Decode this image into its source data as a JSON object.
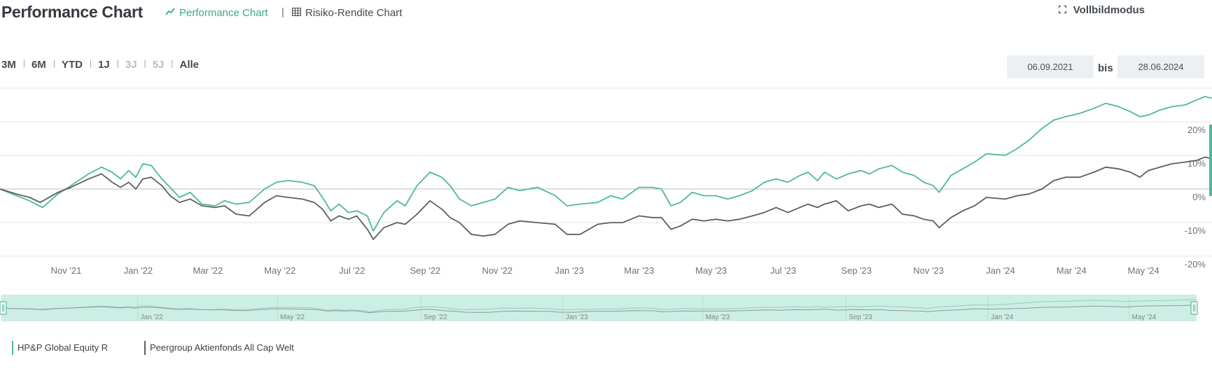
{
  "header": {
    "title": "Performance Chart",
    "tabs": [
      {
        "label": "Performance Chart",
        "icon": "line-chart-icon",
        "active": true
      },
      {
        "label": "Risiko-Rendite Chart",
        "icon": "table-grid-icon",
        "active": false
      }
    ],
    "separator": "|",
    "fullscreen_label": "Vollbildmodus",
    "fullscreen_icon": "expand-icon"
  },
  "range": {
    "buttons": [
      {
        "label": "3M",
        "enabled": true
      },
      {
        "label": "6M",
        "enabled": true
      },
      {
        "label": "YTD",
        "enabled": true
      },
      {
        "label": "1J",
        "enabled": true
      },
      {
        "label": "3J",
        "enabled": false
      },
      {
        "label": "5J",
        "enabled": false
      },
      {
        "label": "Alle",
        "enabled": true
      }
    ],
    "separator": "|",
    "from": "06.09.2021",
    "bis_label": "bis",
    "to": "28.06.2024"
  },
  "colors": {
    "fund": "#4cb99b",
    "peer": "#5a5f66",
    "navigator": "#cdeee4",
    "accent": "#3aa98c"
  },
  "chart_data": {
    "type": "line",
    "x_start": "2021-09-06",
    "x_end": "2024-06-28",
    "xticks": [
      {
        "date": "2021-11-01",
        "label": "Nov '21"
      },
      {
        "date": "2022-01-01",
        "label": "Jan '22"
      },
      {
        "date": "2022-03-01",
        "label": "Mar '22"
      },
      {
        "date": "2022-05-01",
        "label": "May '22"
      },
      {
        "date": "2022-07-01",
        "label": "Jul '22"
      },
      {
        "date": "2022-09-01",
        "label": "Sep '22"
      },
      {
        "date": "2022-11-01",
        "label": "Nov '22"
      },
      {
        "date": "2023-01-01",
        "label": "Jan '23"
      },
      {
        "date": "2023-03-01",
        "label": "Mar '23"
      },
      {
        "date": "2023-05-01",
        "label": "May '23"
      },
      {
        "date": "2023-07-01",
        "label": "Jul '23"
      },
      {
        "date": "2023-09-01",
        "label": "Sep '23"
      },
      {
        "date": "2023-11-01",
        "label": "Nov '23"
      },
      {
        "date": "2024-01-01",
        "label": "Jan '24"
      },
      {
        "date": "2024-03-01",
        "label": "Mar '24"
      },
      {
        "date": "2024-05-01",
        "label": "May '24"
      }
    ],
    "yticks": [
      {
        "value": 20,
        "label": "20%"
      },
      {
        "value": 10,
        "label": "10%"
      },
      {
        "value": 0,
        "label": "0%"
      },
      {
        "value": -10,
        "label": "-10%"
      },
      {
        "value": -20,
        "label": "-20%"
      }
    ],
    "ylim": [
      -20,
      30
    ],
    "navigator_ticks": [
      "Jan '22",
      "May '22",
      "Sep '22",
      "Jan '23",
      "May '23",
      "Sep '23",
      "Jan '24",
      "May '24"
    ],
    "series": [
      {
        "name": "HP&P Global Equity R",
        "color": "#4cb99b",
        "points": [
          [
            "2021-09-06",
            0
          ],
          [
            "2021-09-20",
            -2
          ],
          [
            "2021-10-01",
            -3.5
          ],
          [
            "2021-10-12",
            -5.5
          ],
          [
            "2021-10-25",
            -1.5
          ],
          [
            "2021-11-05",
            1
          ],
          [
            "2021-11-20",
            4.5
          ],
          [
            "2021-12-01",
            6.5
          ],
          [
            "2021-12-10",
            5
          ],
          [
            "2021-12-17",
            3
          ],
          [
            "2021-12-24",
            5.5
          ],
          [
            "2021-12-30",
            3.5
          ],
          [
            "2022-01-05",
            7.5
          ],
          [
            "2022-01-12",
            7
          ],
          [
            "2022-01-21",
            3
          ],
          [
            "2022-01-28",
            0.5
          ],
          [
            "2022-02-05",
            -2.5
          ],
          [
            "2022-02-14",
            -1
          ],
          [
            "2022-02-24",
            -4.5
          ],
          [
            "2022-03-07",
            -5
          ],
          [
            "2022-03-15",
            -3.5
          ],
          [
            "2022-03-25",
            -4.5
          ],
          [
            "2022-04-05",
            -4
          ],
          [
            "2022-04-18",
            0
          ],
          [
            "2022-04-28",
            2
          ],
          [
            "2022-05-08",
            2.5
          ],
          [
            "2022-05-20",
            2
          ],
          [
            "2022-05-30",
            1
          ],
          [
            "2022-06-06",
            -2.5
          ],
          [
            "2022-06-13",
            -6.5
          ],
          [
            "2022-06-20",
            -4.5
          ],
          [
            "2022-06-28",
            -7
          ],
          [
            "2022-07-05",
            -6.5
          ],
          [
            "2022-07-14",
            -8
          ],
          [
            "2022-07-19",
            -12.5
          ],
          [
            "2022-07-28",
            -7
          ],
          [
            "2022-08-08",
            -3.5
          ],
          [
            "2022-08-15",
            -5
          ],
          [
            "2022-08-25",
            1
          ],
          [
            "2022-09-05",
            5
          ],
          [
            "2022-09-15",
            3.5
          ],
          [
            "2022-09-22",
            1
          ],
          [
            "2022-09-30",
            -3
          ],
          [
            "2022-10-10",
            -5
          ],
          [
            "2022-10-20",
            -4
          ],
          [
            "2022-10-30",
            -3
          ],
          [
            "2022-11-10",
            0.5
          ],
          [
            "2022-11-20",
            -0.5
          ],
          [
            "2022-12-05",
            0.5
          ],
          [
            "2022-12-20",
            -2
          ],
          [
            "2022-12-30",
            -5
          ],
          [
            "2023-01-10",
            -4.5
          ],
          [
            "2023-01-25",
            -4
          ],
          [
            "2023-02-05",
            -2
          ],
          [
            "2023-02-15",
            -3
          ],
          [
            "2023-03-01",
            0.5
          ],
          [
            "2023-03-12",
            0.5
          ],
          [
            "2023-03-20",
            0
          ],
          [
            "2023-03-28",
            -5
          ],
          [
            "2023-04-05",
            -4
          ],
          [
            "2023-04-15",
            -1
          ],
          [
            "2023-04-25",
            -2
          ],
          [
            "2023-05-05",
            -2
          ],
          [
            "2023-05-15",
            -3
          ],
          [
            "2023-05-25",
            -2
          ],
          [
            "2023-06-05",
            -0.5
          ],
          [
            "2023-06-15",
            2
          ],
          [
            "2023-06-25",
            3
          ],
          [
            "2023-07-05",
            2
          ],
          [
            "2023-07-15",
            4
          ],
          [
            "2023-07-22",
            5
          ],
          [
            "2023-07-30",
            2.5
          ],
          [
            "2023-08-05",
            5
          ],
          [
            "2023-08-15",
            3
          ],
          [
            "2023-08-25",
            4.5
          ],
          [
            "2023-09-05",
            5.5
          ],
          [
            "2023-09-12",
            4.5
          ],
          [
            "2023-09-20",
            6
          ],
          [
            "2023-10-01",
            7
          ],
          [
            "2023-10-10",
            5
          ],
          [
            "2023-10-20",
            4
          ],
          [
            "2023-10-28",
            2
          ],
          [
            "2023-11-05",
            1
          ],
          [
            "2023-11-10",
            -1
          ],
          [
            "2023-11-20",
            4
          ],
          [
            "2023-11-30",
            6
          ],
          [
            "2023-12-10",
            8
          ],
          [
            "2023-12-20",
            10.5
          ],
          [
            "2024-01-05",
            10
          ],
          [
            "2024-01-15",
            12
          ],
          [
            "2024-01-25",
            14.5
          ],
          [
            "2024-02-05",
            18
          ],
          [
            "2024-02-15",
            20.5
          ],
          [
            "2024-02-25",
            21.5
          ],
          [
            "2024-03-08",
            22.5
          ],
          [
            "2024-03-20",
            24
          ],
          [
            "2024-03-30",
            25.5
          ],
          [
            "2024-04-10",
            24.5
          ],
          [
            "2024-04-20",
            23
          ],
          [
            "2024-04-28",
            21.5
          ],
          [
            "2024-05-05",
            22
          ],
          [
            "2024-05-15",
            23.5
          ],
          [
            "2024-05-25",
            24.5
          ],
          [
            "2024-06-05",
            25
          ],
          [
            "2024-06-15",
            26.5
          ],
          [
            "2024-06-22",
            27.5
          ],
          [
            "2024-06-28",
            27
          ]
        ]
      },
      {
        "name": "Peergroup Aktienfonds All Cap Welt",
        "color": "#5a5f66",
        "points": [
          [
            "2021-09-06",
            0
          ],
          [
            "2021-09-20",
            -1.5
          ],
          [
            "2021-10-01",
            -2.5
          ],
          [
            "2021-10-10",
            -4
          ],
          [
            "2021-10-25",
            -1
          ],
          [
            "2021-11-05",
            0.5
          ],
          [
            "2021-11-20",
            3
          ],
          [
            "2021-12-01",
            4.5
          ],
          [
            "2021-12-10",
            2
          ],
          [
            "2021-12-17",
            0.5
          ],
          [
            "2021-12-24",
            2
          ],
          [
            "2021-12-30",
            0
          ],
          [
            "2022-01-05",
            3
          ],
          [
            "2022-01-12",
            3.5
          ],
          [
            "2022-01-21",
            1
          ],
          [
            "2022-01-28",
            -2
          ],
          [
            "2022-02-05",
            -4
          ],
          [
            "2022-02-14",
            -3
          ],
          [
            "2022-02-24",
            -5
          ],
          [
            "2022-03-07",
            -5.5
          ],
          [
            "2022-03-15",
            -5
          ],
          [
            "2022-03-25",
            -7.5
          ],
          [
            "2022-04-05",
            -8
          ],
          [
            "2022-04-18",
            -4
          ],
          [
            "2022-04-28",
            -2
          ],
          [
            "2022-05-08",
            -2.5
          ],
          [
            "2022-05-20",
            -3
          ],
          [
            "2022-05-30",
            -4
          ],
          [
            "2022-06-06",
            -6
          ],
          [
            "2022-06-13",
            -9.5
          ],
          [
            "2022-06-20",
            -8
          ],
          [
            "2022-06-28",
            -9
          ],
          [
            "2022-07-05",
            -8
          ],
          [
            "2022-07-14",
            -12
          ],
          [
            "2022-07-19",
            -15
          ],
          [
            "2022-07-28",
            -11.5
          ],
          [
            "2022-08-08",
            -10
          ],
          [
            "2022-08-15",
            -10.5
          ],
          [
            "2022-08-25",
            -7.5
          ],
          [
            "2022-09-05",
            -3.5
          ],
          [
            "2022-09-15",
            -6
          ],
          [
            "2022-09-22",
            -8.5
          ],
          [
            "2022-09-30",
            -10
          ],
          [
            "2022-10-10",
            -13.5
          ],
          [
            "2022-10-20",
            -14
          ],
          [
            "2022-10-30",
            -13.5
          ],
          [
            "2022-11-10",
            -10.5
          ],
          [
            "2022-11-20",
            -9.5
          ],
          [
            "2022-12-05",
            -10
          ],
          [
            "2022-12-20",
            -10.5
          ],
          [
            "2022-12-30",
            -13.5
          ],
          [
            "2023-01-10",
            -13.5
          ],
          [
            "2023-01-25",
            -10.5
          ],
          [
            "2023-02-05",
            -10
          ],
          [
            "2023-02-15",
            -10
          ],
          [
            "2023-03-01",
            -8
          ],
          [
            "2023-03-12",
            -8.5
          ],
          [
            "2023-03-20",
            -8.5
          ],
          [
            "2023-03-28",
            -12
          ],
          [
            "2023-04-05",
            -11
          ],
          [
            "2023-04-15",
            -9
          ],
          [
            "2023-04-25",
            -9.5
          ],
          [
            "2023-05-05",
            -9
          ],
          [
            "2023-05-15",
            -9.5
          ],
          [
            "2023-05-25",
            -9
          ],
          [
            "2023-06-05",
            -8
          ],
          [
            "2023-06-15",
            -7
          ],
          [
            "2023-06-25",
            -5.5
          ],
          [
            "2023-07-05",
            -7
          ],
          [
            "2023-07-15",
            -5.5
          ],
          [
            "2023-07-22",
            -4.5
          ],
          [
            "2023-07-30",
            -5.5
          ],
          [
            "2023-08-05",
            -4.5
          ],
          [
            "2023-08-15",
            -3.5
          ],
          [
            "2023-08-25",
            -6.5
          ],
          [
            "2023-09-05",
            -5
          ],
          [
            "2023-09-12",
            -4.5
          ],
          [
            "2023-09-20",
            -5.5
          ],
          [
            "2023-10-01",
            -4.5
          ],
          [
            "2023-10-10",
            -7.5
          ],
          [
            "2023-10-20",
            -8
          ],
          [
            "2023-10-28",
            -9
          ],
          [
            "2023-11-05",
            -9.5
          ],
          [
            "2023-11-10",
            -11.5
          ],
          [
            "2023-11-20",
            -8.5
          ],
          [
            "2023-11-30",
            -6.5
          ],
          [
            "2023-12-10",
            -5
          ],
          [
            "2023-12-20",
            -2.5
          ],
          [
            "2024-01-05",
            -3
          ],
          [
            "2024-01-15",
            -2
          ],
          [
            "2024-01-25",
            -1.5
          ],
          [
            "2024-02-05",
            0
          ],
          [
            "2024-02-15",
            2.5
          ],
          [
            "2024-02-25",
            3.5
          ],
          [
            "2024-03-08",
            3.5
          ],
          [
            "2024-03-20",
            5
          ],
          [
            "2024-03-30",
            6.5
          ],
          [
            "2024-04-10",
            6
          ],
          [
            "2024-04-20",
            5
          ],
          [
            "2024-04-28",
            3.5
          ],
          [
            "2024-05-05",
            5.5
          ],
          [
            "2024-05-15",
            6.5
          ],
          [
            "2024-05-25",
            7.5
          ],
          [
            "2024-06-05",
            8
          ],
          [
            "2024-06-15",
            8.5
          ],
          [
            "2024-06-22",
            9.5
          ],
          [
            "2024-06-28",
            9
          ]
        ]
      }
    ]
  }
}
